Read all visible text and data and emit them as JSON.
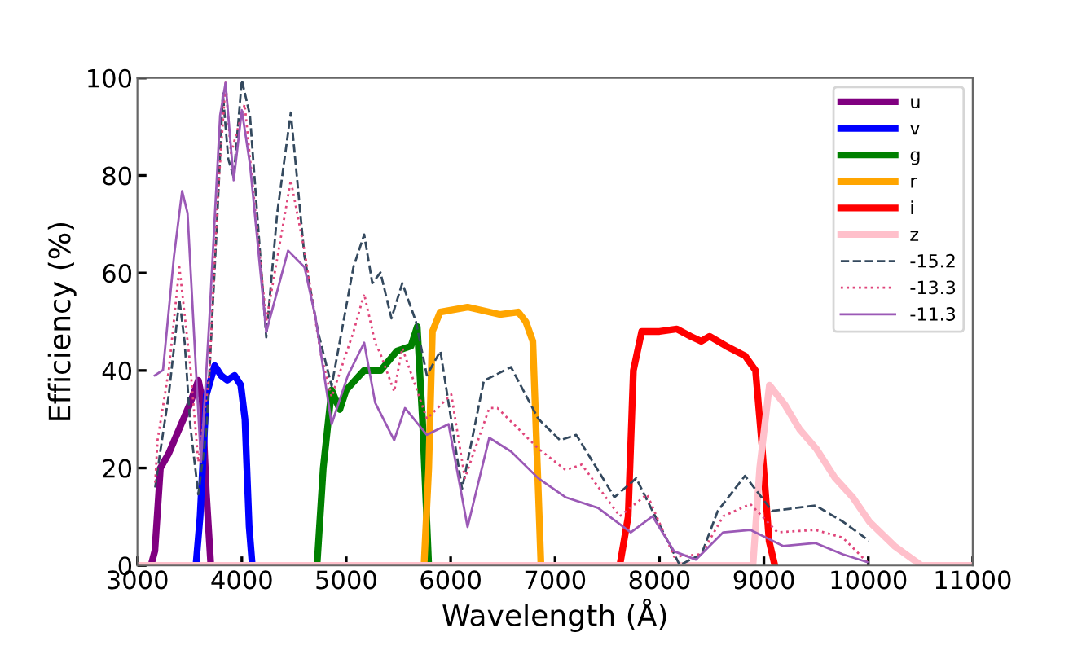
{
  "chart_data": {
    "type": "line",
    "xlabel": "Wavelength (Å)",
    "ylabel": "Efficiency (%)",
    "xlim": [
      3000,
      11000
    ],
    "ylim": [
      0,
      100
    ],
    "xticks": [
      3000,
      4000,
      5000,
      6000,
      7000,
      8000,
      9000,
      10000,
      11000
    ],
    "yticks": [
      0,
      20,
      40,
      60,
      80,
      100
    ],
    "grid": false,
    "legend": "top right",
    "series": [
      {
        "name": "u",
        "color": "#800080",
        "line_style": "solid",
        "x": [
          3130,
          3167,
          3220,
          3300,
          3400,
          3500,
          3584,
          3620,
          3660,
          3703
        ],
        "values": [
          0,
          3,
          20,
          23,
          28,
          33,
          38,
          34,
          15,
          0
        ]
      },
      {
        "name": "v",
        "color": "#0000ff",
        "line_style": "solid",
        "x": [
          3560,
          3600,
          3660,
          3740,
          3800,
          3860,
          3930,
          3990,
          4030,
          4070,
          4100
        ],
        "values": [
          0,
          10,
          35,
          41,
          39,
          38,
          39,
          37,
          30,
          8,
          0
        ]
      },
      {
        "name": "g",
        "color": "#008000",
        "line_style": "solid",
        "x": [
          4720,
          4780,
          4860,
          4938,
          5000,
          5170,
          5330,
          5485,
          5620,
          5680,
          5730,
          5790
        ],
        "values": [
          0,
          20,
          36,
          32,
          36,
          40,
          40,
          44,
          45,
          49,
          30,
          0
        ]
      },
      {
        "name": "r",
        "color": "#ffa500",
        "line_style": "solid",
        "x": [
          5745,
          5790,
          5825,
          5900,
          6162,
          6470,
          6647,
          6720,
          6787,
          6840,
          6865
        ],
        "values": [
          0,
          20,
          48,
          52,
          53,
          51.5,
          52,
          50,
          46,
          15,
          0
        ]
      },
      {
        "name": "i",
        "color": "#ff0000",
        "line_style": "solid",
        "x": [
          7620,
          7700,
          7750,
          7830,
          8000,
          8167,
          8300,
          8400,
          8480,
          8640,
          8820,
          8920,
          8980,
          9050,
          9105
        ],
        "values": [
          0,
          10,
          40,
          48,
          48,
          48.5,
          47,
          46,
          47,
          45,
          43,
          40,
          25,
          5,
          0
        ]
      },
      {
        "name": "z",
        "color": "#ffc0cb",
        "line_style": "solid",
        "x": [
          3000,
          8895,
          8960,
          9053,
          9200,
          9340,
          9500,
          9680,
          9850,
          10010,
          10250,
          10510,
          11000
        ],
        "values": [
          0,
          0,
          20,
          37,
          33,
          28,
          24,
          18,
          14,
          9,
          4,
          0,
          0
        ]
      },
      {
        "name": "-15.2",
        "color": "#34495e",
        "line_style": "dashed",
        "x": [
          3170,
          3219,
          3300,
          3402,
          3453,
          3505,
          3583,
          3662,
          3766,
          3818,
          3870,
          3922,
          4000,
          4078,
          4234,
          4339,
          4469,
          4600,
          4730,
          4860,
          5069,
          5172,
          5250,
          5328,
          5433,
          5537,
          5667,
          5772,
          5902,
          6109,
          6318,
          6578,
          6839,
          7047,
          7203,
          7569,
          7777,
          7933,
          8194,
          8402,
          8558,
          8819,
          9078,
          9495,
          9756,
          10006
        ],
        "values": [
          16,
          23.4,
          35,
          54.6,
          45.7,
          29,
          14.6,
          27.9,
          72,
          96.8,
          83.4,
          79.6,
          99.6,
          92.3,
          46.8,
          72.3,
          92.9,
          63.4,
          47.9,
          36.8,
          61.2,
          67.9,
          57.9,
          60.1,
          50.7,
          57.9,
          50.1,
          39,
          44,
          15.7,
          37.9,
          40.7,
          30.1,
          25.7,
          26.8,
          14,
          17.9,
          11.2,
          0.1,
          2.3,
          11.2,
          18.4,
          11.2,
          12.3,
          9,
          5.1
        ]
      },
      {
        "name": "-13.3",
        "color": "#e0457b",
        "line_style": "dotted",
        "x": [
          3170,
          3193,
          3300,
          3402,
          3505,
          3583,
          3688,
          3766,
          3844,
          3896,
          4027,
          4234,
          4469,
          4600,
          4756,
          4860,
          5069,
          5172,
          5277,
          5328,
          5459,
          5537,
          5772,
          6006,
          6136,
          6370,
          6448,
          6839,
          7100,
          7256,
          7620,
          7881,
          8141,
          8402,
          8610,
          8870,
          9131,
          9495,
          9756,
          9990
        ],
        "values": [
          17,
          25.7,
          40,
          61.2,
          41.2,
          21.2,
          39,
          74.6,
          99,
          84.6,
          94.6,
          50.1,
          79,
          64.6,
          43.4,
          34.6,
          47.9,
          55.7,
          45.7,
          43.4,
          35.7,
          44.6,
          30.1,
          35.1,
          17.9,
          32.3,
          32.3,
          24,
          19.6,
          20.7,
          10.1,
          14.6,
          1.8,
          2.3,
          10.1,
          12.6,
          6.8,
          7.3,
          5.7,
          0.7
        ]
      },
      {
        "name": "-11.3",
        "color": "#9b59b6",
        "line_style": "solid",
        "x": [
          3167,
          3245,
          3350,
          3428,
          3480,
          3558,
          3609,
          3688,
          3792,
          3844,
          3922,
          4000,
          4078,
          4234,
          4443,
          4600,
          4703,
          4860,
          5016,
          5172,
          5277,
          5459,
          5563,
          5772,
          5980,
          6162,
          6370,
          6578,
          6839,
          7100,
          7412,
          7725,
          7933,
          8141,
          8350,
          8610,
          8870,
          9183,
          9495,
          9756,
          9990
        ],
        "values": [
          39,
          40.1,
          63.4,
          76.8,
          72.3,
          41.2,
          21.2,
          50.1,
          92.3,
          99,
          79,
          93.4,
          82.3,
          47.9,
          64.6,
          61.2,
          51.2,
          29,
          39,
          45.7,
          33.4,
          25.7,
          32.3,
          26.8,
          29,
          7.9,
          26.2,
          23.4,
          17.9,
          14,
          11.8,
          6.8,
          10.1,
          2.9,
          1.2,
          6.8,
          7.3,
          4,
          4.6,
          2.3,
          0.7
        ]
      }
    ]
  }
}
